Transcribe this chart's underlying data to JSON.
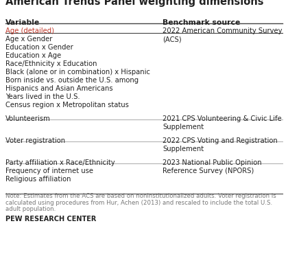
{
  "title": "American Trends Panel weighting dimensions",
  "col1_header": "Variable",
  "col2_header": "Benchmark source",
  "rows": [
    {
      "variables": [
        "Age (detailed)",
        "Age x Gender",
        "Education x Gender",
        "Education x Age",
        "Race/Ethnicity x Education",
        "Black (alone or in combination) x Hispanic",
        "Born inside vs. outside the U.S. among",
        "Hispanics and Asian Americans",
        "Years lived in the U.S.",
        "Census region x Metropolitan status"
      ],
      "benchmark": "2022 American Community Survey\n(ACS)"
    },
    {
      "variables": [
        "Volunteerism"
      ],
      "benchmark": "2021 CPS Volunteering & Civic Life\nSupplement"
    },
    {
      "variables": [
        "Voter registration"
      ],
      "benchmark": "2022 CPS Voting and Registration\nSupplement"
    },
    {
      "variables": [
        "Party affiliation x Race/Ethnicity",
        "Frequency of internet use",
        "Religious affiliation"
      ],
      "benchmark": "2023 National Public Opinion\nReference Survey (NPORS)"
    }
  ],
  "note": "Note: Estimates from the ACS are based on noninstitutionalized adults. Voter registration is\ncalculated using procedures from Hur, Achen (2013) and rescaled to include the total U.S.\nadult population.",
  "footer": "PEW RESEARCH CENTER",
  "age_color": "#c0392b",
  "bg_color": "#ffffff",
  "header_line_color": "#444444",
  "row_line_color": "#aaaaaa",
  "text_color": "#222222",
  "note_color": "#777777",
  "title_fontsize": 10.5,
  "header_fontsize": 7.8,
  "body_fontsize": 7.2,
  "note_fontsize": 6.2,
  "footer_fontsize": 7.0,
  "col_split": 0.56
}
